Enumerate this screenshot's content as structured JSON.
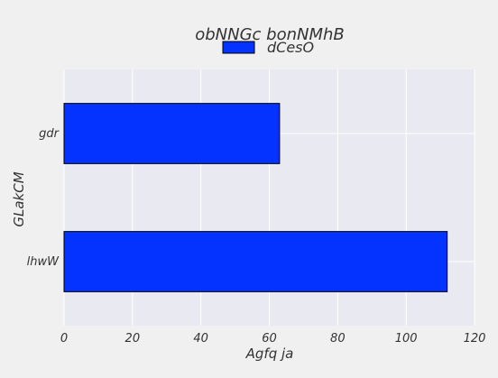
{
  "chart_data": {
    "type": "bar",
    "orientation": "horizontal",
    "title": "obNNGc bonNMhB",
    "xlabel": "Agfq ja",
    "ylabel": "GLakCM",
    "categories": [
      "lhwW",
      "gdr"
    ],
    "series": [
      {
        "name": "dCesO",
        "values": [
          112,
          63
        ],
        "color": "#0433ff"
      }
    ],
    "xlim": [
      0,
      120
    ],
    "xticks": [
      0,
      20,
      40,
      60,
      80,
      100,
      120
    ],
    "grid": true,
    "legend_position": "top-center",
    "colors": {
      "background": "#f0f0f0",
      "plot_background": "#e9e9f1",
      "grid": "#ffffff",
      "bar_edge": "#000000",
      "text": "#333333"
    }
  }
}
